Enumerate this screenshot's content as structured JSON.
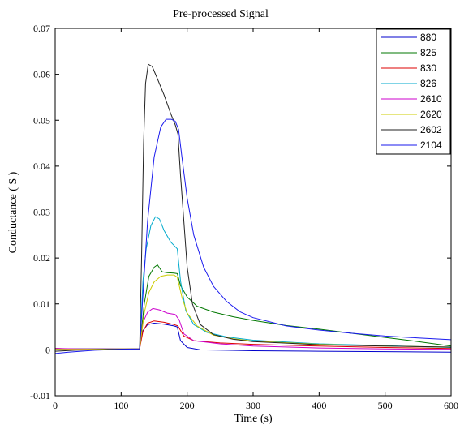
{
  "chart_data": {
    "type": "line",
    "title": "Pre-processed Signal",
    "xlabel": "Time (s)",
    "ylabel": "Conductance ( S )",
    "xlim": [
      0,
      600
    ],
    "ylim": [
      -0.01,
      0.07
    ],
    "x_ticks": [
      0,
      100,
      200,
      300,
      400,
      500,
      600
    ],
    "y_ticks": [
      -0.01,
      0,
      0.01,
      0.02,
      0.03,
      0.04,
      0.05,
      0.06,
      0.07
    ],
    "y_tick_labels": [
      "-0.01",
      "0",
      "0.01",
      "0.02",
      "0.03",
      "0.04",
      "0.05",
      "0.06",
      "0.07"
    ],
    "grid": false,
    "legend_position": "top-right",
    "series": [
      {
        "name": "880",
        "color": "#0000cc",
        "points": [
          [
            0,
            0.0002
          ],
          [
            20,
            0.0002
          ],
          [
            60,
            0.0002
          ],
          [
            100,
            0.0002
          ],
          [
            128,
            0.0002
          ],
          [
            132,
            0.004
          ],
          [
            140,
            0.0055
          ],
          [
            150,
            0.0058
          ],
          [
            165,
            0.0056
          ],
          [
            180,
            0.0052
          ],
          [
            185,
            0.005
          ],
          [
            190,
            0.002
          ],
          [
            200,
            0.0005
          ],
          [
            220,
            0.0
          ],
          [
            260,
            -0.0001
          ],
          [
            300,
            -0.0002
          ],
          [
            400,
            -0.0003
          ],
          [
            500,
            -0.0004
          ],
          [
            600,
            -0.0005
          ]
        ]
      },
      {
        "name": "825",
        "color": "#007700",
        "points": [
          [
            0,
            0.0003
          ],
          [
            20,
            0.0002
          ],
          [
            60,
            0.0002
          ],
          [
            100,
            0.0002
          ],
          [
            128,
            0.0002
          ],
          [
            135,
            0.01
          ],
          [
            142,
            0.016
          ],
          [
            150,
            0.018
          ],
          [
            155,
            0.0185
          ],
          [
            162,
            0.017
          ],
          [
            170,
            0.0168
          ],
          [
            180,
            0.0167
          ],
          [
            185,
            0.0166
          ],
          [
            190,
            0.014
          ],
          [
            200,
            0.0115
          ],
          [
            215,
            0.0095
          ],
          [
            240,
            0.0082
          ],
          [
            270,
            0.0072
          ],
          [
            300,
            0.0064
          ],
          [
            350,
            0.0053
          ],
          [
            400,
            0.0045
          ],
          [
            450,
            0.0036
          ],
          [
            500,
            0.0027
          ],
          [
            550,
            0.0018
          ],
          [
            600,
            0.0008
          ]
        ]
      },
      {
        "name": "830",
        "color": "#dd0000",
        "points": [
          [
            0,
            0.0003
          ],
          [
            30,
            0.0002
          ],
          [
            80,
            0.0002
          ],
          [
            128,
            0.0002
          ],
          [
            133,
            0.004
          ],
          [
            140,
            0.0058
          ],
          [
            150,
            0.0063
          ],
          [
            165,
            0.006
          ],
          [
            180,
            0.0055
          ],
          [
            186,
            0.0052
          ],
          [
            195,
            0.003
          ],
          [
            210,
            0.002
          ],
          [
            250,
            0.0015
          ],
          [
            300,
            0.0012
          ],
          [
            400,
            0.0008
          ],
          [
            500,
            0.0005
          ],
          [
            600,
            0.0003
          ]
        ]
      },
      {
        "name": "826",
        "color": "#00aacc",
        "points": [
          [
            0,
            0.0002
          ],
          [
            40,
            0.0002
          ],
          [
            100,
            0.0002
          ],
          [
            128,
            0.0002
          ],
          [
            133,
            0.015
          ],
          [
            138,
            0.022
          ],
          [
            145,
            0.027
          ],
          [
            152,
            0.029
          ],
          [
            158,
            0.0285
          ],
          [
            165,
            0.026
          ],
          [
            175,
            0.0235
          ],
          [
            185,
            0.022
          ],
          [
            190,
            0.015
          ],
          [
            198,
            0.0085
          ],
          [
            210,
            0.0055
          ],
          [
            230,
            0.0038
          ],
          [
            260,
            0.0028
          ],
          [
            300,
            0.0021
          ],
          [
            400,
            0.0013
          ],
          [
            500,
            0.0009
          ],
          [
            600,
            0.0005
          ]
        ]
      },
      {
        "name": "2610",
        "color": "#cc00cc",
        "points": [
          [
            0,
            0.0003
          ],
          [
            40,
            0.0002
          ],
          [
            100,
            0.0002
          ],
          [
            128,
            0.0002
          ],
          [
            133,
            0.006
          ],
          [
            140,
            0.0082
          ],
          [
            148,
            0.009
          ],
          [
            158,
            0.0087
          ],
          [
            170,
            0.008
          ],
          [
            182,
            0.0077
          ],
          [
            188,
            0.0065
          ],
          [
            195,
            0.0035
          ],
          [
            210,
            0.002
          ],
          [
            250,
            0.0013
          ],
          [
            300,
            0.0008
          ],
          [
            400,
            0.0004
          ],
          [
            500,
            0.0002
          ],
          [
            600,
            0.0001
          ]
        ]
      },
      {
        "name": "2620",
        "color": "#cccc00",
        "points": [
          [
            0,
            0.0001
          ],
          [
            40,
            0.0001
          ],
          [
            100,
            0.0002
          ],
          [
            128,
            0.0002
          ],
          [
            135,
            0.008
          ],
          [
            142,
            0.0125
          ],
          [
            150,
            0.0148
          ],
          [
            160,
            0.016
          ],
          [
            170,
            0.0163
          ],
          [
            180,
            0.0163
          ],
          [
            185,
            0.0158
          ],
          [
            192,
            0.0115
          ],
          [
            200,
            0.008
          ],
          [
            215,
            0.0052
          ],
          [
            240,
            0.0032
          ],
          [
            270,
            0.0024
          ],
          [
            300,
            0.0019
          ],
          [
            400,
            0.0012
          ],
          [
            500,
            0.0008
          ],
          [
            600,
            0.0006
          ]
        ]
      },
      {
        "name": "2602",
        "color": "#222222",
        "points": [
          [
            0,
            -0.0003
          ],
          [
            30,
            -0.0001
          ],
          [
            80,
            0.0001
          ],
          [
            128,
            0.0002
          ],
          [
            131,
            0.02
          ],
          [
            134,
            0.045
          ],
          [
            137,
            0.058
          ],
          [
            141,
            0.0622
          ],
          [
            147,
            0.0617
          ],
          [
            155,
            0.059
          ],
          [
            165,
            0.0555
          ],
          [
            175,
            0.0515
          ],
          [
            182,
            0.049
          ],
          [
            186,
            0.047
          ],
          [
            190,
            0.038
          ],
          [
            195,
            0.028
          ],
          [
            200,
            0.018
          ],
          [
            208,
            0.01
          ],
          [
            220,
            0.0055
          ],
          [
            240,
            0.0033
          ],
          [
            270,
            0.0023
          ],
          [
            300,
            0.0018
          ],
          [
            400,
            0.0011
          ],
          [
            500,
            0.0008
          ],
          [
            600,
            0.0006
          ]
        ]
      },
      {
        "name": "2104",
        "color": "#1a1aee",
        "points": [
          [
            0,
            -0.0008
          ],
          [
            20,
            -0.0005
          ],
          [
            60,
            -0.0001
          ],
          [
            100,
            0.0001
          ],
          [
            128,
            0.0002
          ],
          [
            133,
            0.012
          ],
          [
            140,
            0.028
          ],
          [
            150,
            0.042
          ],
          [
            160,
            0.0485
          ],
          [
            168,
            0.0502
          ],
          [
            176,
            0.0502
          ],
          [
            182,
            0.0498
          ],
          [
            187,
            0.048
          ],
          [
            192,
            0.042
          ],
          [
            200,
            0.033
          ],
          [
            210,
            0.025
          ],
          [
            225,
            0.018
          ],
          [
            240,
            0.0138
          ],
          [
            260,
            0.0105
          ],
          [
            280,
            0.0083
          ],
          [
            300,
            0.007
          ],
          [
            350,
            0.0052
          ],
          [
            400,
            0.0043
          ],
          [
            450,
            0.0036
          ],
          [
            500,
            0.003
          ],
          [
            550,
            0.0026
          ],
          [
            600,
            0.0022
          ]
        ]
      }
    ]
  }
}
